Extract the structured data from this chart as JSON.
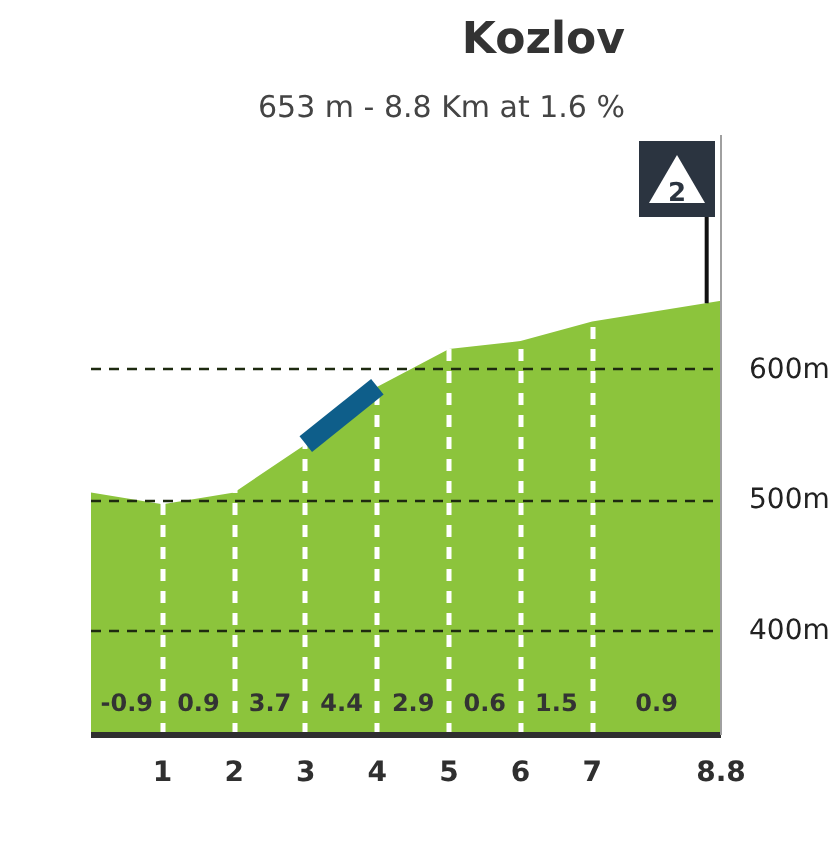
{
  "chart_data": {
    "type": "area",
    "title": "Kozlov",
    "subtitle": "653 m - 8.8 Km at 1.6 %",
    "x": [
      0,
      1,
      2,
      3,
      4,
      5,
      6,
      7,
      8.8
    ],
    "series": [
      {
        "color": "#8cc43c",
        "values": [
          506,
          497,
          506,
          543,
          587,
          616,
          622,
          637,
          653
        ]
      },
      {
        "type": "line",
        "color": "#0e5e8a",
        "x": [
          3,
          4
        ],
        "values": [
          543,
          587
        ]
      }
    ],
    "xlim": [
      0,
      8.8
    ],
    "xticks": [
      1,
      2,
      3,
      4,
      5,
      6,
      7,
      8.8
    ],
    "ylim": [
      320,
      780
    ],
    "yticks": [
      {
        "value": 400,
        "label": "400m"
      },
      {
        "value": 500,
        "label": "500m"
      },
      {
        "value": 600,
        "label": "600m"
      }
    ],
    "grid": true,
    "annotations": [
      "-0.9",
      "0.9",
      "3.7",
      "4.4",
      "2.9",
      "0.6",
      "1.5",
      "0.9",
      {
        "text": "2",
        "x": 8.6,
        "y": 651
      }
    ]
  }
}
